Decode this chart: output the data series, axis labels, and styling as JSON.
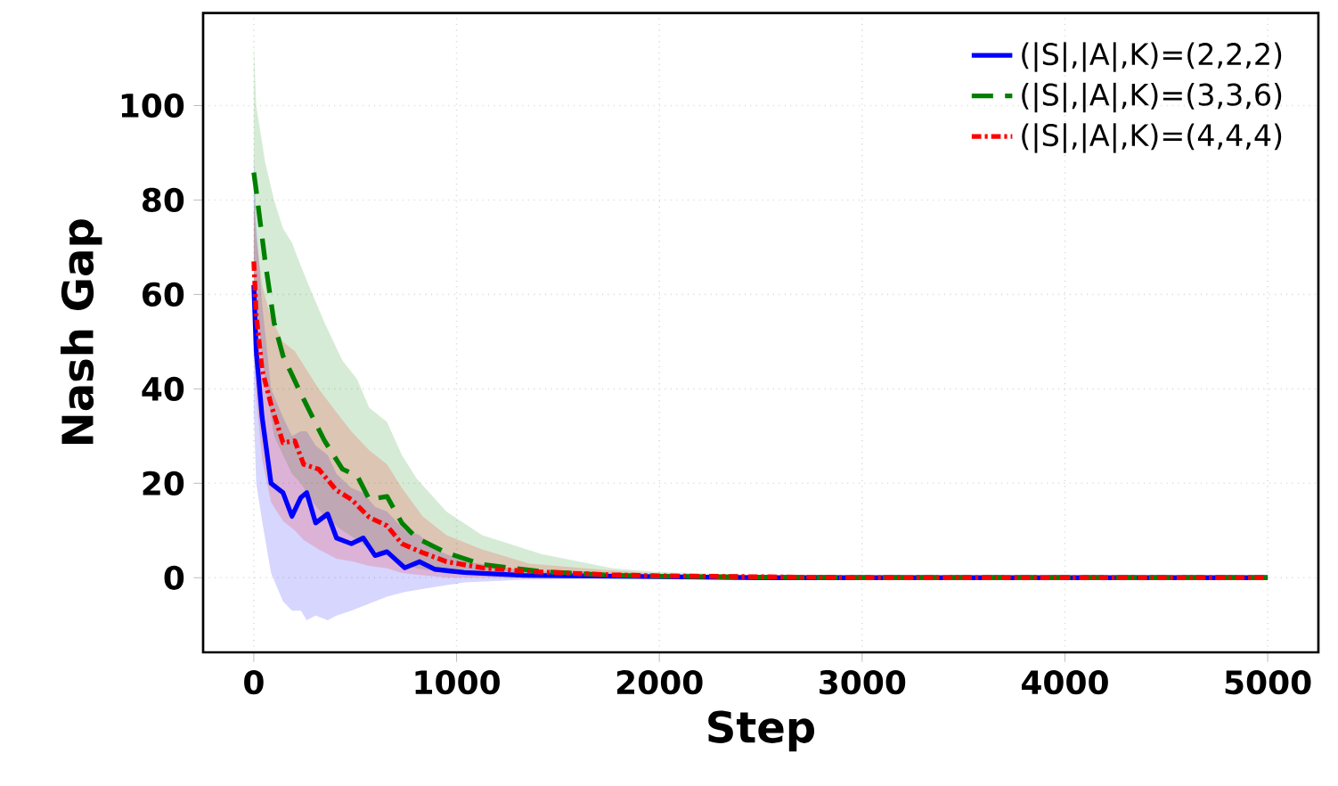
{
  "chart_data": {
    "type": "line",
    "xlabel": "Step",
    "ylabel": "Nash Gap",
    "xlim": [
      -250,
      5250
    ],
    "ylim": [
      -15.8,
      119.6
    ],
    "xticks": [
      0,
      1000,
      2000,
      3000,
      4000,
      5000
    ],
    "yticks": [
      0,
      20,
      40,
      60,
      80,
      100
    ],
    "grid": true,
    "legend": "top right",
    "series": [
      {
        "name": "(|S|,|A|,K)=(2,2,2)",
        "color": "#0000ff",
        "line_style": "solid",
        "x": [
          0,
          12,
          41,
          85,
          144,
          188,
          232,
          261,
          305,
          364,
          408,
          481,
          540,
          598,
          657,
          745,
          818,
          891,
          1038,
          1331,
          2000,
          2500,
          3000,
          3500,
          4000,
          4500,
          5000
        ],
        "values": [
          62,
          48,
          34,
          20,
          18,
          13,
          17,
          18,
          11.6,
          13.5,
          8.4,
          7.2,
          8.4,
          4.7,
          5.5,
          2.1,
          3.4,
          1.8,
          1.1,
          0.5,
          0.2,
          0,
          0,
          0,
          0,
          0,
          0
        ],
        "upper": [
          90,
          75,
          58,
          40,
          34,
          30,
          31,
          31,
          28,
          26,
          22,
          19,
          18,
          15,
          14,
          10,
          9,
          6,
          3.5,
          1.5,
          0.6,
          0.2,
          0.1,
          0.1,
          0.1,
          0.1,
          0.1
        ],
        "lower": [
          35,
          20,
          12,
          1,
          -5,
          -7,
          -7,
          -9,
          -8,
          -9,
          -8,
          -7,
          -6,
          -5,
          -4,
          -3,
          -2.5,
          -2,
          -1,
          -0.4,
          -0.1,
          -0.1,
          -0.1,
          -0.1,
          -0.1,
          -0.1,
          -0.1
        ]
      },
      {
        "name": "(|S|,|A|,K)=(3,3,6)",
        "color": "#008000",
        "line_style": "dashed",
        "x": [
          0,
          12,
          56,
          100,
          144,
          188,
          232,
          290,
          349,
          437,
          510,
          569,
          657,
          730,
          803,
          950,
          1126,
          1419,
          1771,
          2000,
          2500,
          3000,
          3500,
          4000,
          4500,
          5000
        ],
        "values": [
          85.8,
          82,
          67,
          54,
          47,
          43,
          39,
          34,
          29,
          23,
          21.6,
          16.6,
          17.2,
          11.6,
          8.4,
          5.3,
          2.8,
          1.3,
          0.5,
          0.3,
          0.1,
          0,
          0,
          0,
          0,
          0
        ],
        "upper": [
          113,
          100,
          88,
          80,
          74,
          71,
          66,
          60,
          54,
          46,
          42,
          36,
          33,
          26,
          21,
          14,
          9,
          5,
          2,
          1.2,
          0.5,
          0.2,
          0.1,
          0.1,
          0.1,
          0.1
        ],
        "lower": [
          60,
          58,
          42,
          30,
          26,
          22,
          20,
          16,
          13,
          10,
          8,
          6,
          5,
          3,
          2,
          1,
          0.5,
          0.2,
          0,
          0,
          -0.1,
          -0.1,
          -0.1,
          -0.1,
          -0.1,
          -0.1
        ]
      },
      {
        "name": "(|S|,|A|,K)=(4,4,4)",
        "color": "#ff0000",
        "line_style": "dashdot",
        "x": [
          0,
          12,
          41,
          85,
          144,
          202,
          246,
          320,
          408,
          481,
          569,
          657,
          730,
          833,
          950,
          1126,
          1360,
          1771,
          2000,
          2500,
          3000,
          3500,
          4000,
          4500,
          5000
        ],
        "values": [
          67,
          55.6,
          44,
          36.7,
          28.6,
          29,
          24,
          23,
          18.5,
          16.6,
          12.8,
          11,
          7.2,
          5.3,
          3.4,
          2.1,
          1.3,
          0.6,
          0.4,
          0.2,
          0,
          0,
          0,
          0,
          0
        ],
        "upper": [
          80,
          72,
          62,
          55,
          50,
          48,
          45,
          40,
          35,
          31,
          27,
          24,
          19,
          13,
          9,
          6,
          3,
          1.5,
          0.8,
          0.4,
          0.1,
          0.1,
          0.1,
          0.1,
          0.1
        ],
        "lower": [
          50,
          38,
          25,
          16,
          12,
          10,
          8,
          6,
          4,
          3.5,
          2.5,
          2,
          1,
          0.5,
          0,
          0,
          -0.1,
          -0.1,
          0,
          0,
          -0.1,
          -0.1,
          -0.1,
          -0.1,
          -0.1
        ]
      }
    ]
  }
}
